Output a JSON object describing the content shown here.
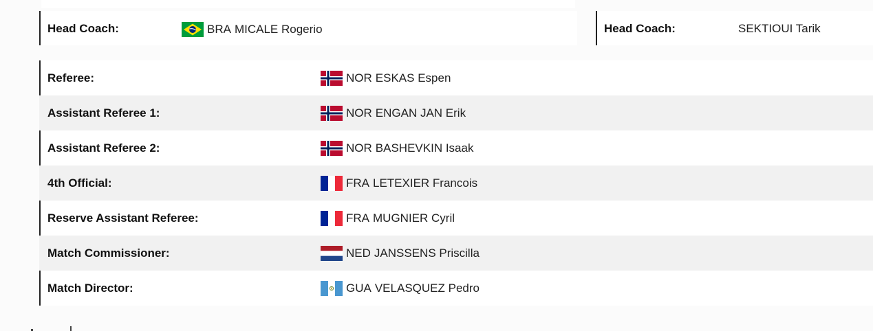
{
  "home_coach": {
    "label": "Head Coach:",
    "country": "BRA",
    "name": "MICALE Rogerio",
    "flag": "brazil-flag"
  },
  "away_coach": {
    "label": "Head Coach:",
    "name": "SEKTIOUI Tarik"
  },
  "officials": [
    {
      "role": "Referee:",
      "country": "NOR",
      "name": "ESKAS Espen",
      "flag": "norway-flag"
    },
    {
      "role": "Assistant Referee 1:",
      "country": "NOR",
      "name": "ENGAN JAN Erik",
      "flag": "norway-flag"
    },
    {
      "role": "Assistant Referee 2:",
      "country": "NOR",
      "name": "BASHEVKIN Isaak",
      "flag": "norway-flag"
    },
    {
      "role": "4th Official:",
      "country": "FRA",
      "name": "LETEXIER Francois",
      "flag": "france-flag"
    },
    {
      "role": "Reserve Assistant Referee:",
      "country": "FRA",
      "name": "MUGNIER Cyril",
      "flag": "france-flag"
    },
    {
      "role": "Match Commissioner:",
      "country": "NED",
      "name": "JANSSENS Priscilla",
      "flag": "netherlands-flag"
    },
    {
      "role": "Match Director:",
      "country": "GUA",
      "name": "VELASQUEZ Pedro",
      "flag": "guatemala-flag"
    }
  ],
  "colors": {
    "row_alt": "#f1f1f1",
    "row": "#ffffff",
    "border": "#222222",
    "norway_red": "#ba0c2f",
    "norway_blue": "#00205b",
    "france_blue": "#002395",
    "france_red": "#ed2939",
    "ned_red": "#ae1c28",
    "ned_blue": "#21468b",
    "gua_blue": "#4997d0",
    "bra_green": "#009c3b",
    "bra_yellow": "#ffdf00",
    "bra_blue": "#002776"
  }
}
